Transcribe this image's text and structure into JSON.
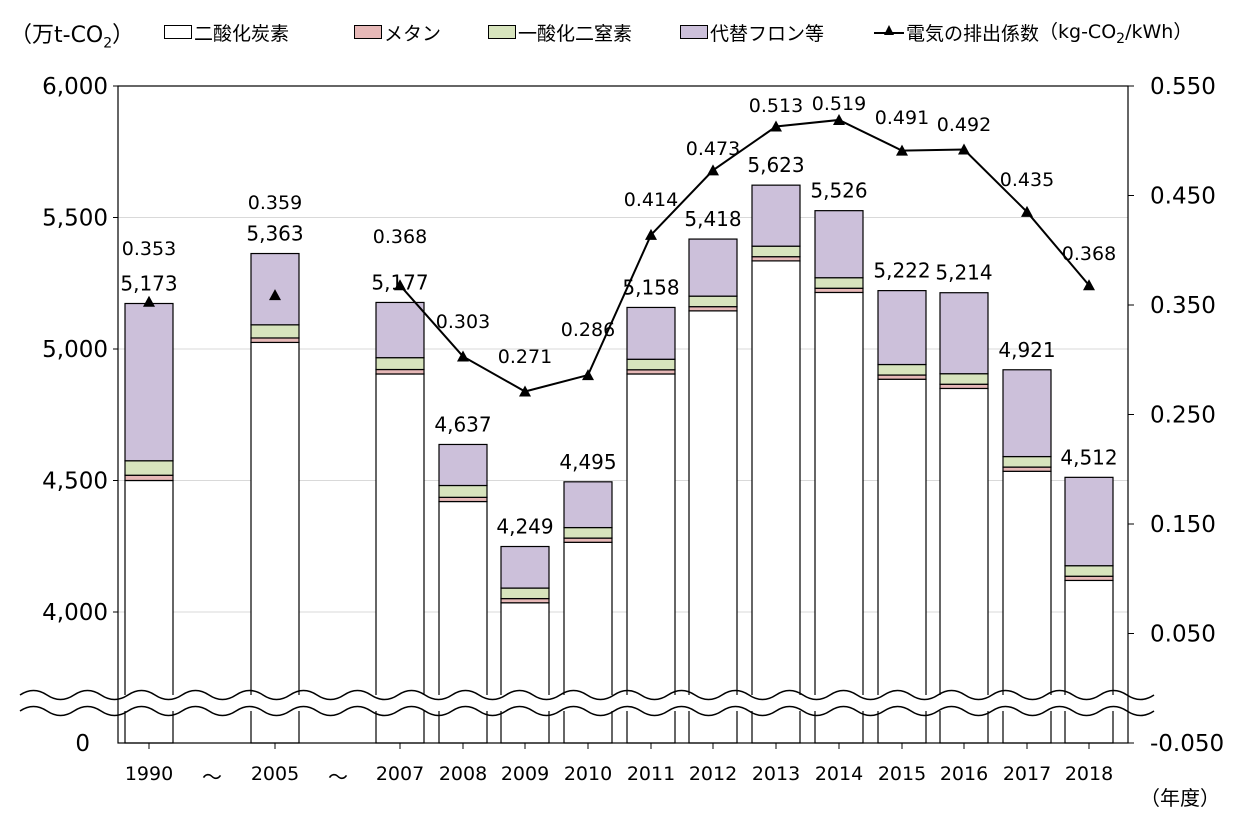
{
  "units": {
    "left_prefix": "（万t-CO",
    "left_sub": "2",
    "left_suffix": "）",
    "right_prefix": "（kg-CO",
    "right_sub": "2",
    "right_suffix": "/kWh）",
    "year": "（年度）"
  },
  "legend": [
    {
      "label": "二酸化炭素",
      "color": "#ffffff",
      "kind": "box"
    },
    {
      "label": "メタン",
      "color": "#e6b8b7",
      "kind": "box"
    },
    {
      "label": "一酸化二窒素",
      "color": "#d7e4bd",
      "kind": "box"
    },
    {
      "label": "代替フロン等",
      "color": "#ccc0da",
      "kind": "box"
    },
    {
      "label": "電気の排出係数",
      "color": "#000000",
      "kind": "line"
    }
  ],
  "chart_data": {
    "type": "bar",
    "stacked": true,
    "categories": [
      "1990",
      "2005",
      "2007",
      "2008",
      "2009",
      "2010",
      "2011",
      "2012",
      "2013",
      "2014",
      "2015",
      "2016",
      "2017",
      "2018"
    ],
    "gap_markers": [
      "～",
      "～"
    ],
    "series": [
      {
        "name": "二酸化炭素",
        "color": "#ffffff",
        "values": [
          4500,
          5025,
          4905,
          4420,
          4035,
          4265,
          4905,
          5145,
          5335,
          5215,
          4885,
          4850,
          4535,
          4120
        ]
      },
      {
        "name": "メタン",
        "color": "#e6b8b7",
        "values": [
          20,
          17,
          17,
          16,
          16,
          16,
          16,
          16,
          16,
          16,
          16,
          16,
          16,
          16
        ]
      },
      {
        "name": "一酸化二窒素",
        "color": "#d7e4bd",
        "values": [
          55,
          50,
          45,
          45,
          40,
          40,
          40,
          40,
          40,
          40,
          40,
          40,
          40,
          40
        ]
      },
      {
        "name": "代替フロン等",
        "color": "#ccc0da",
        "values": [
          598,
          271,
          210,
          156,
          158,
          174,
          197,
          217,
          232,
          255,
          281,
          308,
          330,
          336
        ]
      }
    ],
    "totals": [
      "5,173",
      "5,363",
      "5,177",
      "4,637",
      "4,249",
      "4,495",
      "5,158",
      "5,418",
      "5,623",
      "5,526",
      "5,222",
      "5,214",
      "4,921",
      "4,512"
    ],
    "line": {
      "name": "電気の排出係数",
      "values": [
        0.353,
        0.359,
        0.368,
        0.303,
        0.271,
        0.286,
        0.414,
        0.473,
        0.513,
        0.519,
        0.491,
        0.492,
        0.435,
        0.368
      ],
      "labels": [
        "0.353",
        "0.359",
        "0.368",
        "0.303",
        "0.271",
        "0.286",
        "0.414",
        "0.473",
        "0.513",
        "0.519",
        "0.491",
        "0.492",
        "0.435",
        "0.368"
      ],
      "connected_from": "2007"
    },
    "y_left": {
      "ticks": [
        4000,
        4500,
        5000,
        5500,
        6000
      ],
      "tick_labels": [
        "4,000",
        "4,500",
        "5,000",
        "5,500",
        "6,000"
      ],
      "bottom_label": "0",
      "visible_range": [
        3750,
        6000
      ],
      "axis_break": true
    },
    "y_right": {
      "ticks": [
        -0.05,
        0.05,
        0.15,
        0.25,
        0.35,
        0.45,
        0.55
      ],
      "tick_labels": [
        "-0.050",
        "0.050",
        "0.150",
        "0.250",
        "0.350",
        "0.450",
        "0.550"
      ],
      "range": [
        -0.05,
        0.55
      ]
    },
    "grid": true
  }
}
